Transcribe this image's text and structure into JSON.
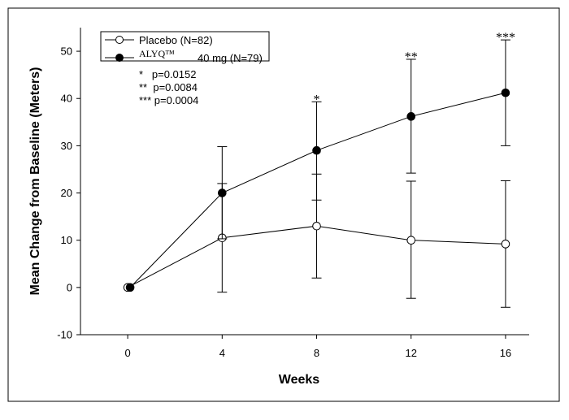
{
  "chart_data": {
    "type": "line",
    "x": [
      0,
      4,
      8,
      12,
      16
    ],
    "xlabel": "Weeks",
    "ylabel": "Mean Change from Baseline (Meters)",
    "xlim": [
      -2,
      17
    ],
    "ylim": [
      -10,
      55
    ],
    "xticks": [
      "0",
      "4",
      "8",
      "12",
      "16"
    ],
    "yticks": [
      "-10",
      "0",
      "10",
      "20",
      "30",
      "40",
      "50"
    ],
    "grid": false,
    "legend_position": "top-left",
    "series": [
      {
        "name": "Placebo (N=82)",
        "marker": "open-circle",
        "color": "#000000",
        "values": [
          0,
          10.5,
          13,
          10,
          9.2
        ],
        "error_upper": [
          0,
          22,
          24,
          22.5,
          22.6
        ],
        "error_lower": [
          0,
          -1,
          2,
          -2.3,
          -4.2
        ]
      },
      {
        "name_brand": "ALYQ™",
        "name": "40 mg (N=79)",
        "marker": "filled-circle",
        "color": "#000000",
        "values": [
          0,
          20,
          29,
          36.2,
          41.2
        ],
        "error_upper": [
          0,
          29.8,
          39.3,
          48.3,
          52.4
        ],
        "error_lower": [
          0,
          10.3,
          18.5,
          24.2,
          30
        ]
      }
    ],
    "significance_markers": [
      {
        "x": 8,
        "label": "*"
      },
      {
        "x": 12,
        "label": "**"
      },
      {
        "x": 16,
        "label": "***"
      }
    ],
    "legend_notes": [
      "*   p=0.0152",
      "**  p=0.0084",
      "*** p=0.0004"
    ]
  }
}
